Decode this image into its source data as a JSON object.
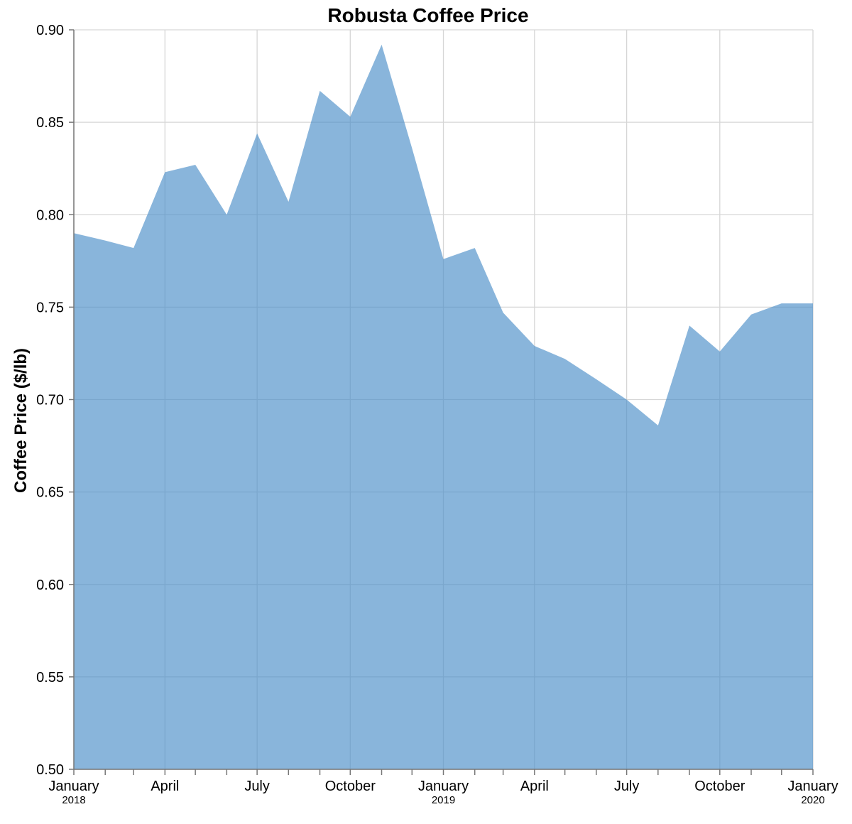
{
  "chart_data": {
    "type": "area",
    "title": "Robusta Coffee Price",
    "ylabel": "Coffee Price ($/lb)",
    "xlabel": "",
    "ylim": [
      0.5,
      0.9
    ],
    "xlim": [
      "2018-01-01",
      "2020-01-01"
    ],
    "grid": true,
    "legend": "none",
    "area_color": "#4c8ec8",
    "area_opacity": 0.66,
    "y_ticks": [
      "0.50",
      "0.55",
      "0.60",
      "0.65",
      "0.70",
      "0.75",
      "0.80",
      "0.85",
      "0.90"
    ],
    "x_ticks": [
      {
        "date": "2018-01-01",
        "label": "January",
        "year": "2018"
      },
      {
        "date": "2018-02-01",
        "label": "",
        "year": ""
      },
      {
        "date": "2018-03-01",
        "label": "",
        "year": ""
      },
      {
        "date": "2018-04-01",
        "label": "April",
        "year": ""
      },
      {
        "date": "2018-05-01",
        "label": "",
        "year": ""
      },
      {
        "date": "2018-06-01",
        "label": "",
        "year": ""
      },
      {
        "date": "2018-07-01",
        "label": "July",
        "year": ""
      },
      {
        "date": "2018-08-01",
        "label": "",
        "year": ""
      },
      {
        "date": "2018-09-01",
        "label": "",
        "year": ""
      },
      {
        "date": "2018-10-01",
        "label": "October",
        "year": ""
      },
      {
        "date": "2018-11-01",
        "label": "",
        "year": ""
      },
      {
        "date": "2018-12-01",
        "label": "",
        "year": ""
      },
      {
        "date": "2019-01-01",
        "label": "January",
        "year": "2019"
      },
      {
        "date": "2019-02-01",
        "label": "",
        "year": ""
      },
      {
        "date": "2019-03-01",
        "label": "",
        "year": ""
      },
      {
        "date": "2019-04-01",
        "label": "April",
        "year": ""
      },
      {
        "date": "2019-05-01",
        "label": "",
        "year": ""
      },
      {
        "date": "2019-06-01",
        "label": "",
        "year": ""
      },
      {
        "date": "2019-07-01",
        "label": "July",
        "year": ""
      },
      {
        "date": "2019-08-01",
        "label": "",
        "year": ""
      },
      {
        "date": "2019-09-01",
        "label": "",
        "year": ""
      },
      {
        "date": "2019-10-01",
        "label": "October",
        "year": ""
      },
      {
        "date": "2019-11-01",
        "label": "",
        "year": ""
      },
      {
        "date": "2019-12-01",
        "label": "",
        "year": ""
      },
      {
        "date": "2020-01-01",
        "label": "January",
        "year": "2020"
      }
    ],
    "x": [
      "2018-01-01",
      "2018-02-01",
      "2018-03-01",
      "2018-04-01",
      "2018-05-01",
      "2018-06-01",
      "2018-07-01",
      "2018-08-01",
      "2018-09-01",
      "2018-10-01",
      "2018-11-01",
      "2018-12-01",
      "2019-01-01",
      "2019-02-01",
      "2019-03-01",
      "2019-04-01",
      "2019-05-01",
      "2019-06-01",
      "2019-07-01",
      "2019-08-01",
      "2019-09-01",
      "2019-10-01",
      "2019-11-01",
      "2019-12-01",
      "2020-01-01"
    ],
    "values": [
      0.79,
      0.786,
      0.782,
      0.823,
      0.827,
      0.8,
      0.844,
      0.807,
      0.867,
      0.853,
      0.892,
      0.836,
      0.776,
      0.782,
      0.747,
      0.729,
      0.722,
      0.711,
      0.7,
      0.686,
      0.74,
      0.726,
      0.746,
      0.752,
      0.752
    ]
  }
}
